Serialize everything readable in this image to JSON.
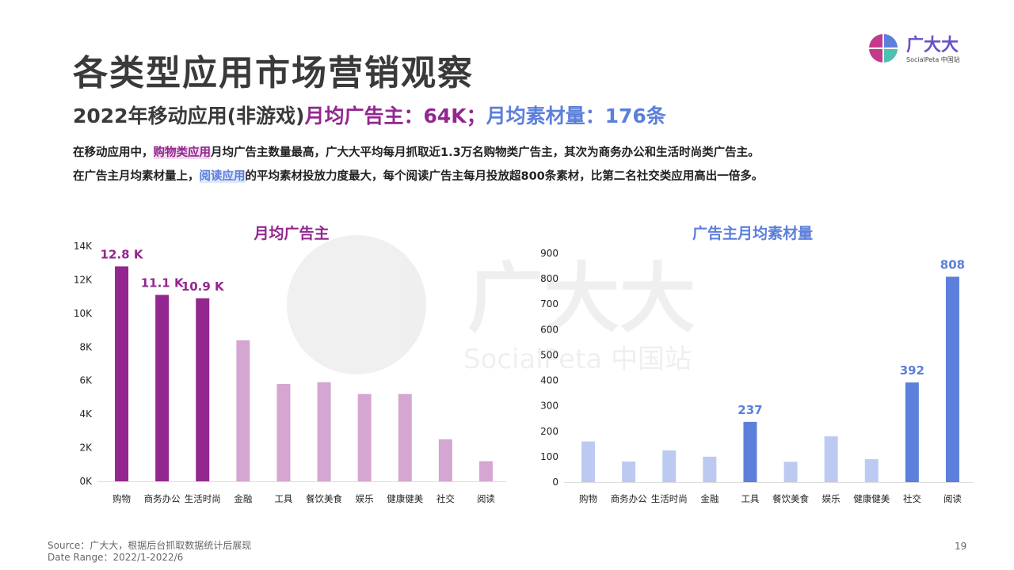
{
  "title": "各类型应用市场营销观察",
  "subtitle": [
    "2022年移动应用(非游戏)",
    "月均广告主：64K；",
    "月均素材量：176条"
  ],
  "paragraphs": [
    [
      "在移动应用中，",
      "购物类应用",
      "月均广告主数量最高，广大大平均每月抓取近1.3万名购物类广告主，其次为商务办公和生活时尚类广告主。"
    ],
    [
      "在广告主月均素材量上，",
      "阅读应用",
      "的平均素材投放力度最大，每个阅读广告主每月投放超800条素材，比第二名社交类应用高出一倍多。"
    ]
  ],
  "logo": {
    "name": "广大大",
    "tagline": "SocialPeta 中国站"
  },
  "watermark": {
    "name": "广大大",
    "tagline": "SocialPeta 中国站"
  },
  "footer": {
    "source": "Source：广大大，根据后台抓取数据统计后展现",
    "date_range": "Date Range：2022/1-2022/6",
    "page": "19"
  },
  "chart_data": [
    {
      "type": "bar",
      "title": "月均广告主",
      "categories": [
        "购物",
        "商务办公",
        "生活时尚",
        "金融",
        "工具",
        "餐饮美食",
        "娱乐",
        "健康健美",
        "社交",
        "阅读"
      ],
      "values": [
        12.8,
        11.1,
        10.9,
        8.4,
        5.8,
        5.9,
        5.2,
        5.2,
        2.5,
        1.2
      ],
      "value_labels": [
        "12.8 K",
        "11.1 K",
        "10.9 K",
        null,
        null,
        null,
        null,
        null,
        null,
        null
      ],
      "colors": [
        "#93278f",
        "#93278f",
        "#93278f",
        "#d4a6d1",
        "#d4a6d1",
        "#d4a6d1",
        "#d4a6d1",
        "#d4a6d1",
        "#d4a6d1",
        "#d4a6d1"
      ],
      "ylim": [
        0,
        14
      ],
      "yticks": [
        {
          "value": 0,
          "label": "0K"
        },
        {
          "value": 2,
          "label": "2K"
        },
        {
          "value": 4,
          "label": "4K"
        },
        {
          "value": 6,
          "label": "6K"
        },
        {
          "value": 8,
          "label": "8K"
        },
        {
          "value": 10,
          "label": "10K"
        },
        {
          "value": 12,
          "label": "12K"
        },
        {
          "value": 14,
          "label": "14K"
        }
      ],
      "title_color": "#93278f",
      "label_color": "#93278f"
    },
    {
      "type": "bar",
      "title": "广告主月均素材量",
      "categories": [
        "购物",
        "商务办公",
        "生活时尚",
        "金融",
        "工具",
        "餐饮美食",
        "娱乐",
        "健康健美",
        "社交",
        "阅读"
      ],
      "values": [
        160,
        81,
        125,
        100,
        237,
        80,
        180,
        90,
        392,
        808
      ],
      "value_labels": [
        null,
        null,
        null,
        null,
        "237",
        null,
        null,
        null,
        "392",
        "808"
      ],
      "colors": [
        "#bccaf2",
        "#bccaf2",
        "#bccaf2",
        "#bccaf2",
        "#5b7fdb",
        "#bccaf2",
        "#bccaf2",
        "#bccaf2",
        "#5b7fdb",
        "#5b7fdb"
      ],
      "ylim": [
        0,
        900
      ],
      "yticks": [
        0,
        100,
        200,
        300,
        400,
        500,
        600,
        700,
        800,
        900
      ],
      "title_color": "#5b7fdb",
      "label_color": "#5b7fdb"
    }
  ]
}
